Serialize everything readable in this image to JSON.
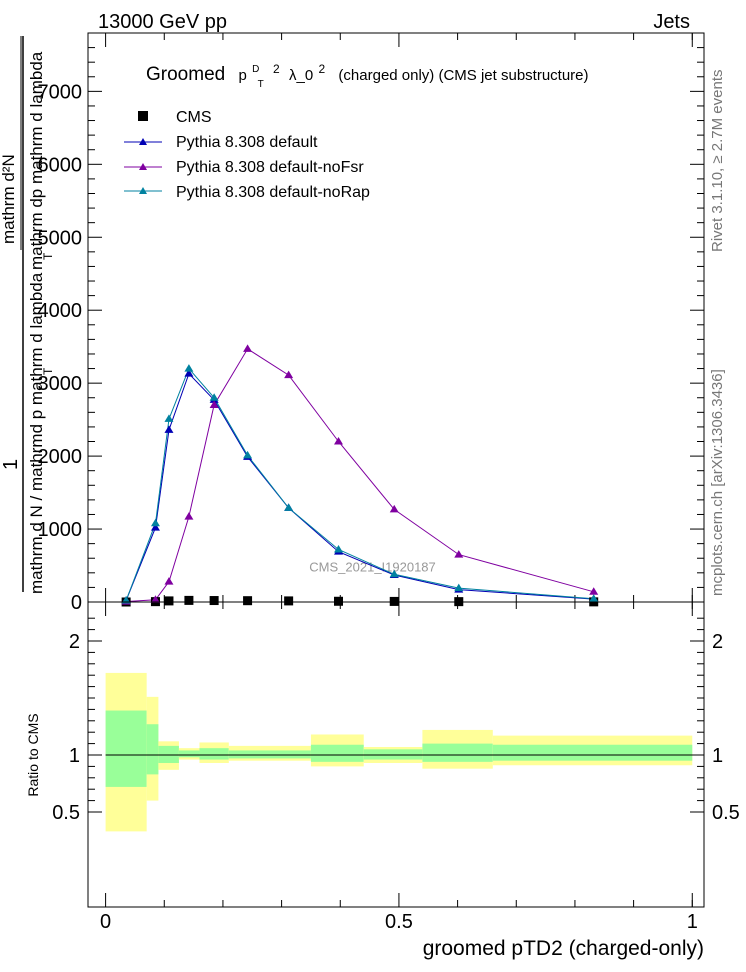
{
  "header": {
    "left": "13000 GeV pp",
    "right": "Jets"
  },
  "side": {
    "rivet": "Rivet 3.1.10, ≥ 2.7M events",
    "mcplots": "mcplots.cern.ch [arXiv:1306.3436]"
  },
  "colors": {
    "cms": "#000000",
    "default": "#0000b4",
    "noFsr": "#7f00a0",
    "noRap": "#0082a0",
    "band_inner": "#99ff99",
    "band_outer": "#ffff99"
  },
  "chart_data": [
    {
      "type": "line",
      "title": "Groomed (p_T^D)^2 λ_0^2 (charged only) (CMS jet substructure)",
      "title_parts": {
        "prefix": "Groomed",
        "p": "p",
        "sub": "T",
        "sup": "D",
        "sq": "2",
        "lambda": "λ_0",
        "suffix": "(charged only) (CMS jet substructure)"
      },
      "ylabel": {
        "one": "1",
        "denominator": "mathrm d N / mathrmd p   mathrm d lambda",
        "denominator_sub": "T",
        "numerator": "mathrm d²N",
        "numerator_mid": "mathrm dp   mathrm d lambda",
        "numerator_sub": "T"
      },
      "xlim": [
        -0.03,
        1.02
      ],
      "ylim": [
        0,
        7800
      ],
      "yticks": [
        0,
        1000,
        2000,
        3000,
        4000,
        5000,
        6000,
        7000
      ],
      "ytick_labels": [
        "0",
        "1000",
        "2000",
        "3000",
        "4000",
        "5000",
        "6000",
        "7000"
      ],
      "watermark": "CMS_2021_I1920187",
      "legend_position": "top-left",
      "series": [
        {
          "name": "CMS",
          "marker": "square",
          "x": [
            0.035,
            0.085,
            0.108,
            0.142,
            0.185,
            0.242,
            0.312,
            0.397,
            0.492,
            0.602,
            0.832
          ],
          "y": [
            0,
            5,
            15,
            22,
            20,
            18,
            15,
            10,
            8,
            5,
            2
          ]
        },
        {
          "name": "Pythia 8.308 default",
          "marker": "triangle",
          "x": [
            0.035,
            0.085,
            0.108,
            0.142,
            0.185,
            0.242,
            0.312,
            0.397,
            0.492,
            0.602,
            0.832
          ],
          "y": [
            20,
            1020,
            2360,
            3130,
            2770,
            1990,
            1290,
            690,
            370,
            170,
            40
          ]
        },
        {
          "name": "Pythia 8.308 default-noFsr",
          "marker": "triangle",
          "x": [
            0.035,
            0.085,
            0.108,
            0.142,
            0.185,
            0.242,
            0.312,
            0.397,
            0.492,
            0.602,
            0.832
          ],
          "y": [
            5,
            30,
            280,
            1170,
            2700,
            3470,
            3110,
            2200,
            1270,
            650,
            140
          ]
        },
        {
          "name": "Pythia 8.308 default-noRap",
          "marker": "triangle",
          "x": [
            0.035,
            0.085,
            0.108,
            0.142,
            0.185,
            0.242,
            0.312,
            0.397,
            0.492,
            0.602,
            0.832
          ],
          "y": [
            20,
            1080,
            2510,
            3200,
            2800,
            2010,
            1290,
            720,
            380,
            190,
            45
          ]
        }
      ]
    },
    {
      "type": "area",
      "ylabel": "Ratio to CMS",
      "xlabel": "groomed pTD2 (charged-only)",
      "xlim": [
        -0.03,
        1.02
      ],
      "ylim": [
        0.33,
        2.27
      ],
      "xticks": [
        0,
        0.5,
        1
      ],
      "xtick_labels": [
        "0",
        "0.5",
        "1"
      ],
      "yticks": [
        0.5,
        1,
        2
      ],
      "ytick_labels": [
        "0.5",
        "1",
        "2"
      ],
      "reference": 1,
      "bins": [
        0,
        0.07,
        0.09,
        0.125,
        0.16,
        0.21,
        0.35,
        0.44,
        0.54,
        0.66,
        1.0
      ],
      "inner_low": [
        0.72,
        0.83,
        0.93,
        0.98,
        0.96,
        0.97,
        0.94,
        0.96,
        0.94,
        0.95
      ],
      "inner_high": [
        1.39,
        1.27,
        1.08,
        1.04,
        1.06,
        1.04,
        1.09,
        1.05,
        1.1,
        1.09
      ],
      "outer_low": [
        0.33,
        0.6,
        0.87,
        0.96,
        0.93,
        0.95,
        0.9,
        0.93,
        0.88,
        0.91
      ],
      "outer_high": [
        1.72,
        1.51,
        1.12,
        1.06,
        1.11,
        1.08,
        1.18,
        1.07,
        1.22,
        1.17
      ]
    }
  ]
}
